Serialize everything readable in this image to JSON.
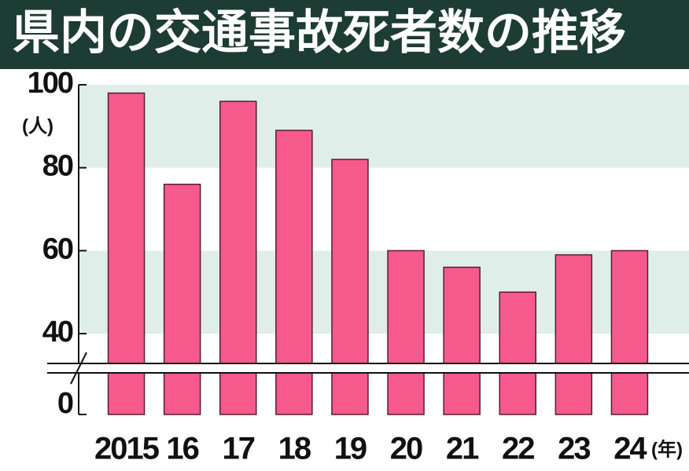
{
  "chart_data": {
    "type": "bar",
    "title": "県内の交通事故死者数の推移",
    "y_unit": "(人)",
    "x_unit": "(年)",
    "categories": [
      "2015",
      "16",
      "17",
      "18",
      "19",
      "20",
      "21",
      "22",
      "23",
      "24"
    ],
    "values": [
      98,
      76,
      96,
      89,
      82,
      60,
      56,
      50,
      59,
      60
    ],
    "color": "#f65a8c",
    "ylim": [
      0,
      100
    ],
    "yticks": [
      0,
      40,
      60,
      80,
      100
    ],
    "grid": true
  }
}
